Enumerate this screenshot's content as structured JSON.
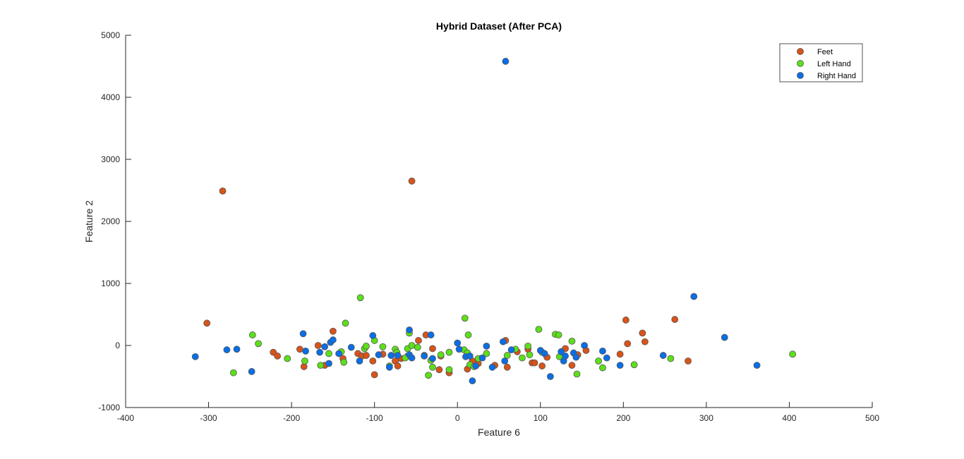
{
  "chart_data": {
    "type": "scatter",
    "title": "Hybrid Dataset (After PCA)",
    "xlabel": "Feature 6",
    "ylabel": "Feature 2",
    "xlim": [
      -400,
      500
    ],
    "ylim": [
      -1000,
      5000
    ],
    "xticks": [
      "-400",
      "-300",
      "-200",
      "-100",
      "0",
      "100",
      "200",
      "300",
      "400",
      "500"
    ],
    "yticks": [
      "-1000",
      "0",
      "1000",
      "2000",
      "3000",
      "4000",
      "5000"
    ],
    "grid": false,
    "legend_position": "top-right",
    "series": [
      {
        "name": "Feet",
        "color": "#D95319",
        "points": [
          [
            -283,
            2490
          ],
          [
            -302,
            360
          ],
          [
            -222,
            -110
          ],
          [
            -217,
            -170
          ],
          [
            -190,
            -60
          ],
          [
            -185,
            -340
          ],
          [
            -168,
            0
          ],
          [
            -160,
            -320
          ],
          [
            -150,
            230
          ],
          [
            -138,
            -210
          ],
          [
            -120,
            -130
          ],
          [
            -115,
            -170
          ],
          [
            -110,
            -160
          ],
          [
            -102,
            -250
          ],
          [
            -100,
            -470
          ],
          [
            -90,
            -140
          ],
          [
            -75,
            -250
          ],
          [
            -72,
            -330
          ],
          [
            -68,
            -210
          ],
          [
            -60,
            -170
          ],
          [
            -55,
            2650
          ],
          [
            -47,
            80
          ],
          [
            -40,
            -160
          ],
          [
            -38,
            170
          ],
          [
            -30,
            -50
          ],
          [
            -22,
            -390
          ],
          [
            -20,
            -170
          ],
          [
            -10,
            -440
          ],
          [
            12,
            -380
          ],
          [
            18,
            -250
          ],
          [
            25,
            -290
          ],
          [
            45,
            -320
          ],
          [
            58,
            80
          ],
          [
            60,
            -350
          ],
          [
            72,
            -100
          ],
          [
            85,
            -60
          ],
          [
            90,
            -280
          ],
          [
            93,
            -280
          ],
          [
            102,
            -330
          ],
          [
            108,
            -190
          ],
          [
            130,
            -50
          ],
          [
            138,
            -320
          ],
          [
            145,
            -150
          ],
          [
            155,
            -80
          ],
          [
            196,
            -140
          ],
          [
            203,
            410
          ],
          [
            205,
            30
          ],
          [
            223,
            200
          ],
          [
            226,
            60
          ],
          [
            262,
            420
          ],
          [
            278,
            -250
          ]
        ]
      },
      {
        "name": "Left Hand",
        "color": "#5CE01A",
        "points": [
          [
            -270,
            -440
          ],
          [
            -247,
            170
          ],
          [
            -240,
            30
          ],
          [
            -205,
            -210
          ],
          [
            -184,
            -250
          ],
          [
            -165,
            -320
          ],
          [
            -155,
            -130
          ],
          [
            -140,
            -100
          ],
          [
            -137,
            -270
          ],
          [
            -135,
            360
          ],
          [
            -117,
            770
          ],
          [
            -112,
            -50
          ],
          [
            -110,
            -10
          ],
          [
            -100,
            80
          ],
          [
            -90,
            -20
          ],
          [
            -82,
            -330
          ],
          [
            -75,
            -60
          ],
          [
            -73,
            -110
          ],
          [
            -63,
            -200
          ],
          [
            -60,
            -50
          ],
          [
            -58,
            200
          ],
          [
            -55,
            0
          ],
          [
            -48,
            -30
          ],
          [
            -35,
            -480
          ],
          [
            -32,
            -240
          ],
          [
            -30,
            -350
          ],
          [
            -20,
            -150
          ],
          [
            -10,
            -390
          ],
          [
            -10,
            -110
          ],
          [
            8,
            -70
          ],
          [
            9,
            440
          ],
          [
            12,
            -120
          ],
          [
            13,
            170
          ],
          [
            15,
            -310
          ],
          [
            20,
            -340
          ],
          [
            25,
            -210
          ],
          [
            35,
            -130
          ],
          [
            60,
            -160
          ],
          [
            70,
            -60
          ],
          [
            78,
            -200
          ],
          [
            85,
            -10
          ],
          [
            87,
            -150
          ],
          [
            98,
            260
          ],
          [
            102,
            -110
          ],
          [
            118,
            180
          ],
          [
            122,
            170
          ],
          [
            123,
            -180
          ],
          [
            138,
            70
          ],
          [
            144,
            -460
          ],
          [
            170,
            -250
          ],
          [
            175,
            -360
          ],
          [
            213,
            -310
          ],
          [
            257,
            -210
          ],
          [
            404,
            -140
          ]
        ]
      },
      {
        "name": "Right Hand",
        "color": "#0A6EE6",
        "points": [
          [
            -316,
            -180
          ],
          [
            -278,
            -70
          ],
          [
            -266,
            -60
          ],
          [
            -248,
            -420
          ],
          [
            -186,
            190
          ],
          [
            -183,
            -90
          ],
          [
            -166,
            -110
          ],
          [
            -160,
            -20
          ],
          [
            -155,
            -290
          ],
          [
            -153,
            50
          ],
          [
            -150,
            90
          ],
          [
            -143,
            -130
          ],
          [
            -128,
            -30
          ],
          [
            -118,
            -250
          ],
          [
            -102,
            160
          ],
          [
            -95,
            -150
          ],
          [
            -82,
            -350
          ],
          [
            -80,
            -160
          ],
          [
            -72,
            -160
          ],
          [
            -58,
            250
          ],
          [
            -58,
            -150
          ],
          [
            -55,
            -200
          ],
          [
            -40,
            -170
          ],
          [
            -32,
            170
          ],
          [
            -30,
            -210
          ],
          [
            0,
            40
          ],
          [
            2,
            -60
          ],
          [
            10,
            -180
          ],
          [
            15,
            -170
          ],
          [
            18,
            -570
          ],
          [
            22,
            -330
          ],
          [
            30,
            -200
          ],
          [
            35,
            -10
          ],
          [
            42,
            -350
          ],
          [
            55,
            60
          ],
          [
            57,
            -250
          ],
          [
            65,
            -70
          ],
          [
            100,
            -80
          ],
          [
            105,
            -130
          ],
          [
            112,
            -500
          ],
          [
            125,
            -100
          ],
          [
            128,
            -250
          ],
          [
            130,
            -170
          ],
          [
            140,
            -120
          ],
          [
            143,
            -190
          ],
          [
            153,
            0
          ],
          [
            175,
            -90
          ],
          [
            180,
            -200
          ],
          [
            196,
            -320
          ],
          [
            248,
            -160
          ],
          [
            285,
            790
          ],
          [
            322,
            130
          ],
          [
            361,
            -320
          ],
          [
            58,
            4580
          ]
        ]
      }
    ]
  }
}
